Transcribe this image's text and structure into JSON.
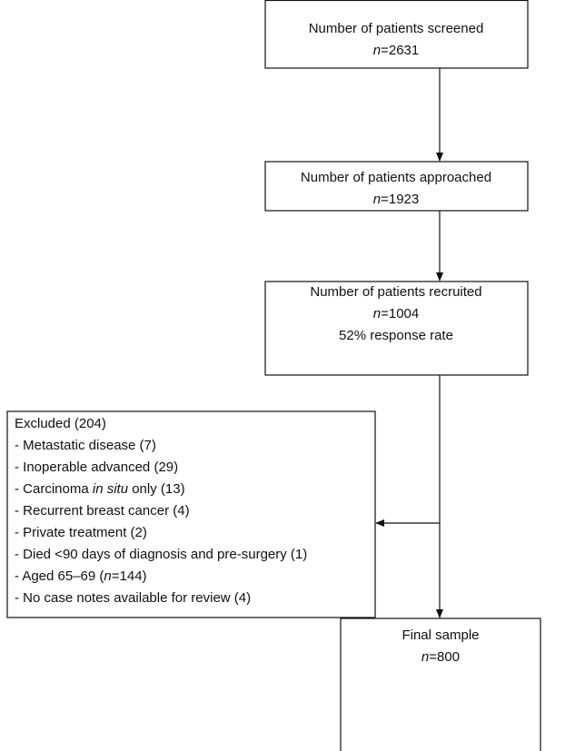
{
  "nodes": [
    {
      "lines": [
        [
          "Number of patients screened"
        ],
        [
          "n",
          "=2631"
        ]
      ]
    },
    {
      "lines": [
        [
          "Number of patients approached"
        ],
        [
          "n",
          "=1923"
        ]
      ]
    },
    {
      "lines": [
        [
          "Number of patients recruited"
        ],
        [
          "n",
          "=1004"
        ],
        [
          "52% response rate"
        ]
      ]
    },
    {
      "lines": [
        [
          "Excluded (204)"
        ],
        [
          "- Metastatic disease (7)"
        ],
        [
          "- Inoperable advanced (29)"
        ],
        [
          "- Carcinoma ",
          "in situ",
          " only (13)"
        ],
        [
          "- Recurrent breast cancer (4)"
        ],
        [
          "- Private treatment (2)"
        ],
        [
          "- Died <90 days of diagnosis and pre-surgery (1)"
        ],
        [
          "- Aged 65–69 (",
          "n",
          "=144)"
        ],
        [
          "- No case notes available for review (4)"
        ]
      ]
    },
    {
      "lines": [
        [
          "Final sample"
        ],
        [
          "n",
          "=800"
        ]
      ]
    }
  ]
}
